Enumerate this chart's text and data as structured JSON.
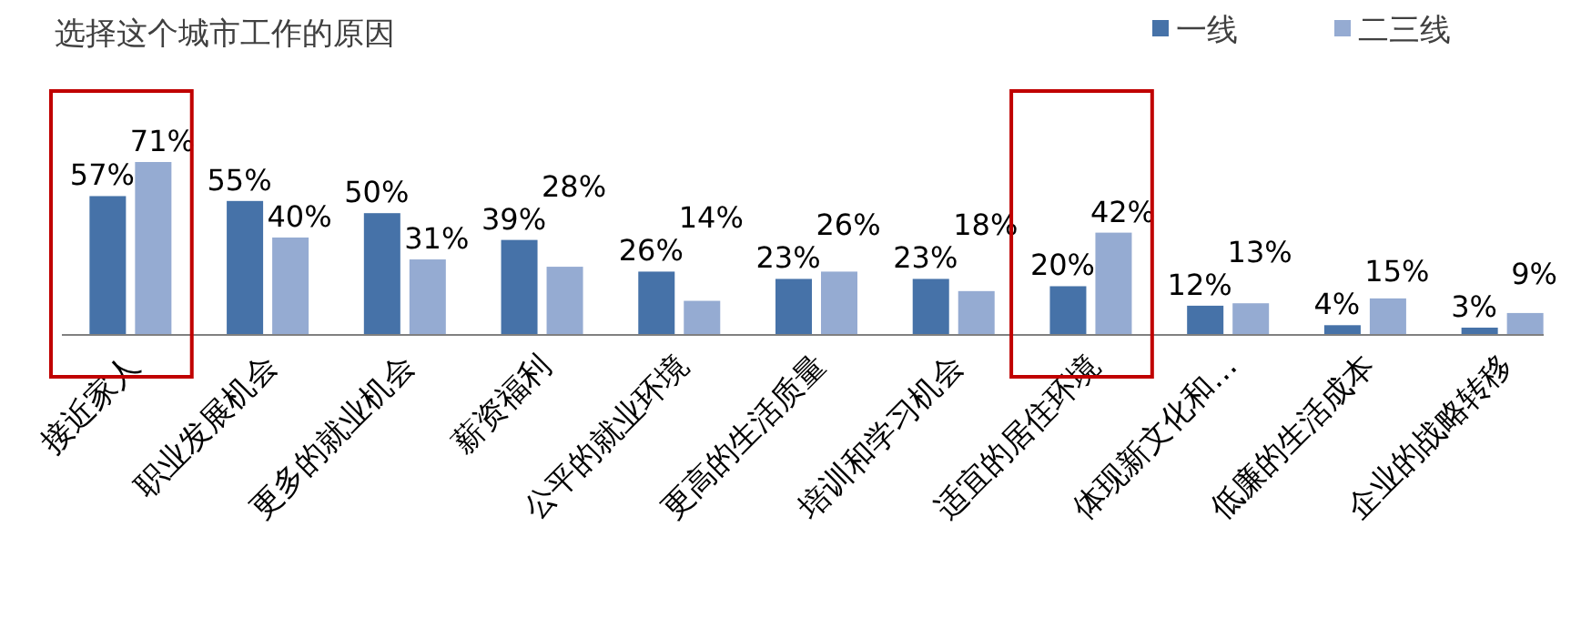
{
  "chart_data": {
    "type": "bar",
    "title": "选择这个城市工作的原因",
    "categories": [
      "接近家人",
      "职业发展机会",
      "更多的就业机会",
      "薪资福利",
      "公平的就业环境",
      "更高的生活质量",
      "培训和学习机会",
      "适宜的居住环境",
      "体现新文化和…",
      "低廉的生活成本",
      "企业的战略转移"
    ],
    "series": [
      {
        "name": "一线",
        "color": "#4672a8",
        "values": [
          57,
          55,
          50,
          39,
          26,
          23,
          23,
          20,
          12,
          4,
          3
        ],
        "value_labels": [
          "57%",
          "55%",
          "50%",
          "39%",
          "26%",
          "23%",
          "23%",
          "20%",
          "12%",
          "4%",
          "3%"
        ]
      },
      {
        "name": "二三线",
        "color": "#95abd2",
        "values": [
          71,
          40,
          31,
          28,
          14,
          26,
          18,
          42,
          13,
          15,
          9
        ],
        "value_labels": [
          "71%",
          "40%",
          "31%",
          "28%",
          "14%",
          "26%",
          "18%",
          "42%",
          "13%",
          "15%",
          "9%"
        ]
      }
    ],
    "legend": "top right"
  }
}
